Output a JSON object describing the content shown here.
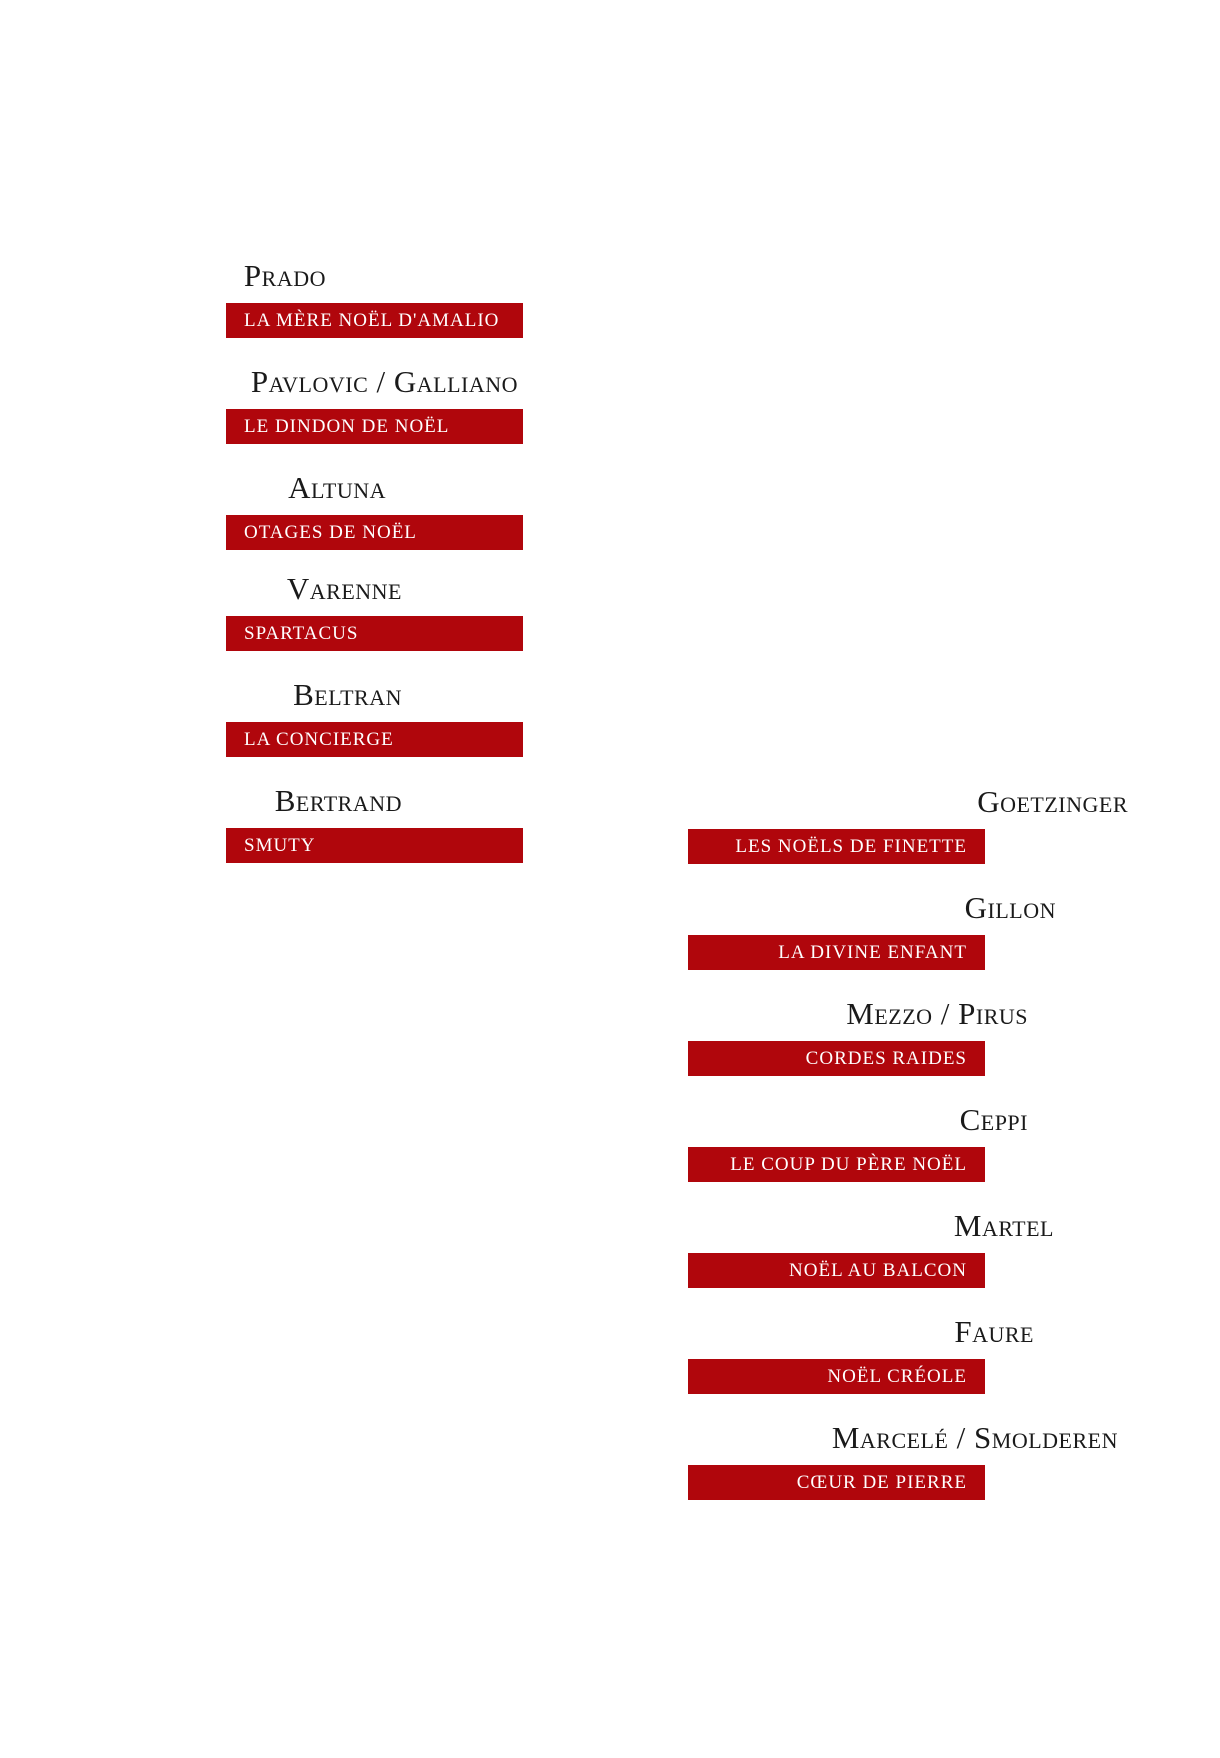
{
  "left_column": [
    {
      "author": "Prado",
      "title": "LA MÈRE NOËL D'AMALIO"
    },
    {
      "author": "Pavlovic / Galliano",
      "title": "LE DINDON DE NOËL"
    },
    {
      "author": "Altuna",
      "title": "OTAGES DE NOËL"
    },
    {
      "author": "Varenne",
      "title": "SPARTACUS"
    },
    {
      "author": "Beltran",
      "title": "LA CONCIERGE"
    },
    {
      "author": "Bertrand",
      "title": "SMUTY"
    }
  ],
  "right_column": [
    {
      "author": "Goetzinger",
      "title": "LES NOËLS DE FINETTE"
    },
    {
      "author": "Gillon",
      "title": "LA DIVINE ENFANT"
    },
    {
      "author": "Mezzo / Pirus",
      "title": "CORDES RAIDES"
    },
    {
      "author": "Ceppi",
      "title": "LE COUP DU PÈRE NOËL"
    },
    {
      "author": "Martel",
      "title": "NOËL AU BALCON"
    },
    {
      "author": "Faure",
      "title": "NOËL CRÉOLE"
    },
    {
      "author": "Marcelé / Smolderen",
      "title": "CŒUR DE PIERRE"
    }
  ],
  "colors": {
    "title_bar": "#b0060c",
    "title_text": "#ffffff",
    "author_text": "#1a1a1a"
  }
}
